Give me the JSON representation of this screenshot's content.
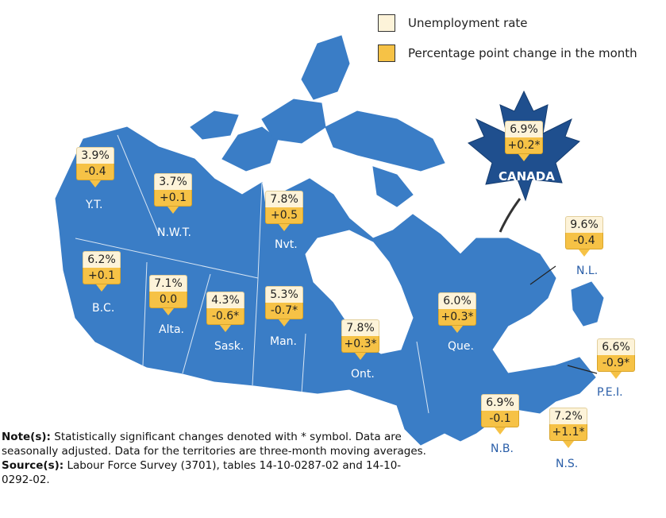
{
  "legend": {
    "rate_label": "Unemployment rate",
    "change_label": "Percentage point change in the month",
    "rate_color": "#fdf3d9",
    "change_color": "#f6c246"
  },
  "map_color": "#3a7dc6",
  "regions": {
    "canada": {
      "label": "CANADA",
      "rate": "6.9%",
      "change": "+0.2*"
    },
    "yt": {
      "label": "Y.T.",
      "rate": "3.9%",
      "change": "-0.4"
    },
    "nwt": {
      "label": "N.W.T.",
      "rate": "3.7%",
      "change": "+0.1"
    },
    "nvt": {
      "label": "Nvt.",
      "rate": "7.8%",
      "change": "+0.5"
    },
    "bc": {
      "label": "B.C.",
      "rate": "6.2%",
      "change": "+0.1"
    },
    "alta": {
      "label": "Alta.",
      "rate": "7.1%",
      "change": "0.0"
    },
    "sask": {
      "label": "Sask.",
      "rate": "4.3%",
      "change": "-0.6*"
    },
    "man": {
      "label": "Man.",
      "rate": "5.3%",
      "change": "-0.7*"
    },
    "ont": {
      "label": "Ont.",
      "rate": "7.8%",
      "change": "+0.3*"
    },
    "que": {
      "label": "Que.",
      "rate": "6.0%",
      "change": "+0.3*"
    },
    "nl": {
      "label": "N.L.",
      "rate": "9.6%",
      "change": "-0.4"
    },
    "pei": {
      "label": "P.E.I.",
      "rate": "6.6%",
      "change": "-0.9*"
    },
    "nb": {
      "label": "N.B.",
      "rate": "6.9%",
      "change": "-0.1"
    },
    "ns": {
      "label": "N.S.",
      "rate": "7.2%",
      "change": "+1.1*"
    }
  },
  "note": {
    "notes_head": "Note(s):",
    "notes_text": " Statistically significant changes denoted with * symbol. Data are seasonally adjusted. Data for the territories are three-month moving averages.",
    "source_head": "Source(s):",
    "source_text": " Labour Force Survey (3701), tables 14-10-0287-02 and 14-10-0292-02."
  }
}
